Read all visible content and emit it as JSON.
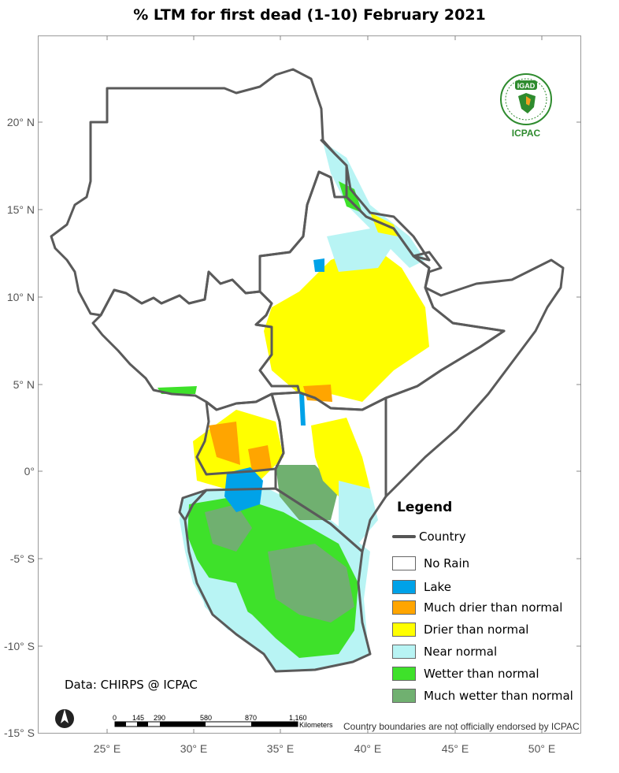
{
  "title": "% LTM  for   first dead (1-10) February 2021",
  "axes": {
    "lat_labels": [
      "20° N",
      "15° N",
      "10° N",
      "5° N",
      "0°",
      "-5° S",
      "-10° S",
      "-15° S"
    ],
    "lon_labels": [
      "25° E",
      "30° E",
      "35° E",
      "40° E",
      "45° E",
      "50° E"
    ]
  },
  "legend": {
    "title": "Legend",
    "country_label": "Country",
    "items": [
      {
        "label": "No Rain",
        "color": "#ffffff"
      },
      {
        "label": "Lake",
        "color": "#00a2e8"
      },
      {
        "label": "Much drier than normal",
        "color": "#ffa500"
      },
      {
        "label": "Drier than normal",
        "color": "#ffff00"
      },
      {
        "label": "Near normal",
        "color": "#b8f4f4"
      },
      {
        "label": "Wetter than normal",
        "color": "#3ee12a"
      },
      {
        "label": "Much wetter than normal",
        "color": "#70b070"
      }
    ]
  },
  "credit": "Data: CHIRPS @ ICPAC",
  "disclaimer": "Country boundaries are not officially endorsed by ICPAC",
  "scale_bar": {
    "ticks": [
      "0",
      "145",
      "290",
      "580",
      "870",
      "1,160"
    ],
    "unit": "Kilometers"
  },
  "logo": {
    "top_text": "IGAD",
    "bottom_text": "ICPAC",
    "icon": "igad-icpac-logo"
  },
  "north_arrow": {
    "icon": "north-arrow-icon"
  }
}
